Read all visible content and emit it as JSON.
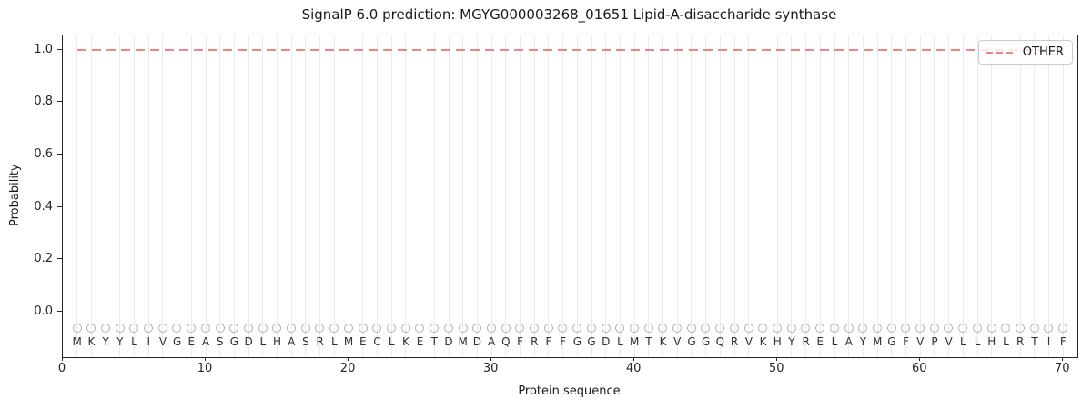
{
  "chart_data": {
    "type": "line",
    "title": "SignalP 6.0 prediction: MGYG000003268_01651 Lipid-A-disaccharide synthase",
    "xlabel": "Protein sequence",
    "ylabel": "Probability",
    "xlim": [
      0,
      71
    ],
    "ylim": [
      -0.175,
      1.055
    ],
    "x_ticks": [
      0,
      10,
      20,
      30,
      40,
      50,
      60,
      70
    ],
    "y_ticks": [
      "0.0",
      "0.2",
      "0.4",
      "0.6",
      "0.8",
      "1.0"
    ],
    "grid": "vertical gridline at every residue position, light gray",
    "legend": {
      "position": "upper right",
      "entries": [
        {
          "label": "OTHER",
          "color": "#ee8585",
          "line_style": "dashed"
        }
      ]
    },
    "series": [
      {
        "name": "OTHER",
        "color": "#ee8585",
        "line_style": "dashed",
        "x_start": 1,
        "x_end": 70,
        "y_constant": 1.0
      }
    ],
    "sequence": "MKYYLIVGEASGDLHASRLMECLKETDMDAQFRFFGGDLMTKVGGQRVKHYRELAYMGFVPVLLHLRTIF",
    "sequence_marker": {
      "shape": "open-circle",
      "color": "#b0b0b0",
      "y_value": -0.064
    },
    "sequence_letter_y": -0.116
  },
  "colors": {
    "line_other": "#ee8585",
    "grid": "#ebebeb",
    "marker_outline": "#b0b0b0",
    "axis": "#262626",
    "legend_border": "#cccccc"
  }
}
